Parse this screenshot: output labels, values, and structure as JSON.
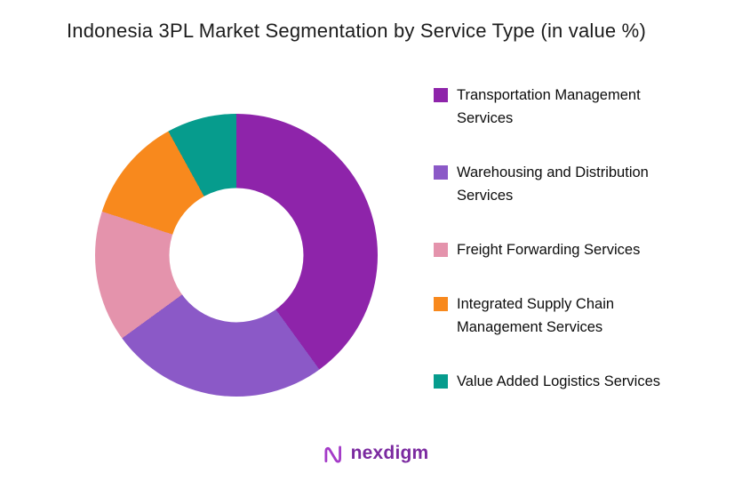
{
  "title": "Indonesia 3PL Market Segmentation by Service Type (in value %)",
  "chart_data": {
    "type": "pie",
    "subtype": "donut",
    "title": "Indonesia 3PL Market Segmentation by Service Type (in value %)",
    "categories": [
      "Transportation Management Services",
      "Warehousing and Distribution Services",
      "Freight Forwarding Services",
      "Integrated Supply Chain Management Services",
      "Value Added Logistics Services"
    ],
    "values": [
      40,
      25,
      15,
      12,
      8
    ],
    "unit": "%",
    "colors": [
      "#8E24AA",
      "#8B59C7",
      "#E493AC",
      "#F8891D",
      "#069C8D"
    ],
    "start_angle_deg": 0,
    "direction": "clockwise",
    "inner_radius_ratio": 0.475,
    "legend_position": "right",
    "data_labels": "none"
  },
  "footer": {
    "brand": "nexdigm",
    "brand_color": "#7B2AA0",
    "icon_color": "#A43BC8"
  }
}
